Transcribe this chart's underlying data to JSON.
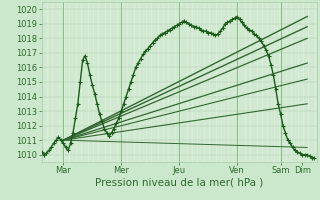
{
  "xlabel": "Pression niveau de la mer( hPa )",
  "bg_color": "#cce8cc",
  "plot_bg_color": "#d8eed8",
  "grid_color": "#aaccaa",
  "ylim": [
    1009.5,
    1020.5
  ],
  "yticks": [
    1010,
    1011,
    1012,
    1013,
    1014,
    1015,
    1016,
    1017,
    1018,
    1019,
    1020
  ],
  "xlim": [
    0,
    228
  ],
  "xtick_labels": [
    "Mar",
    "Mer",
    "Jeu",
    "Ven",
    "Sam",
    "Dim"
  ],
  "xtick_positions": [
    18,
    66,
    114,
    162,
    198,
    216
  ],
  "vline_positions": [
    18,
    66,
    114,
    162,
    198
  ],
  "vline_color": "#88bb88",
  "tick_color": "#2d6a2d",
  "tick_fontsize": 6.0,
  "label_fontsize": 7.5,
  "line_color": "#1a5c1a",
  "fc_color": "#336633",
  "actual_x": [
    0,
    2,
    4,
    6,
    8,
    10,
    12,
    14,
    16,
    18,
    20,
    22,
    24,
    26,
    28,
    30,
    32,
    34,
    36,
    38,
    40,
    42,
    44,
    46,
    48,
    50,
    52,
    54,
    56,
    58,
    60,
    62,
    64,
    66,
    68,
    70,
    72,
    74,
    76,
    78,
    80,
    82,
    84,
    86,
    88,
    90,
    92,
    94,
    96,
    98,
    100,
    102,
    104,
    106,
    108,
    110,
    112,
    114,
    116,
    118,
    120,
    122,
    124,
    126,
    128,
    130,
    132,
    134,
    136,
    138,
    140,
    142,
    144,
    146,
    148,
    150,
    152,
    154,
    156,
    158,
    160,
    162,
    164,
    166,
    168,
    170,
    172,
    174,
    176,
    178,
    180,
    182,
    184,
    186,
    188,
    190,
    192,
    194,
    196,
    198,
    200,
    202,
    204,
    206,
    208,
    210,
    212,
    214,
    216,
    218,
    220,
    222,
    224,
    226
  ],
  "actual_y": [
    1010.2,
    1010.0,
    1010.1,
    1010.3,
    1010.5,
    1010.8,
    1011.0,
    1011.2,
    1011.0,
    1010.8,
    1010.5,
    1010.3,
    1010.8,
    1011.5,
    1012.5,
    1013.5,
    1015.0,
    1016.5,
    1016.8,
    1016.3,
    1015.5,
    1014.8,
    1014.2,
    1013.5,
    1012.8,
    1012.3,
    1011.8,
    1011.5,
    1011.3,
    1011.5,
    1011.8,
    1012.2,
    1012.5,
    1013.0,
    1013.5,
    1014.0,
    1014.5,
    1015.0,
    1015.5,
    1016.0,
    1016.3,
    1016.6,
    1016.9,
    1017.1,
    1017.3,
    1017.5,
    1017.7,
    1017.9,
    1018.0,
    1018.2,
    1018.3,
    1018.4,
    1018.5,
    1018.6,
    1018.7,
    1018.8,
    1018.9,
    1019.0,
    1019.1,
    1019.2,
    1019.1,
    1019.0,
    1018.9,
    1018.8,
    1018.8,
    1018.7,
    1018.6,
    1018.5,
    1018.5,
    1018.4,
    1018.4,
    1018.3,
    1018.2,
    1018.3,
    1018.5,
    1018.7,
    1019.0,
    1019.1,
    1019.2,
    1019.3,
    1019.4,
    1019.5,
    1019.3,
    1019.1,
    1018.9,
    1018.7,
    1018.6,
    1018.5,
    1018.3,
    1018.2,
    1018.0,
    1017.8,
    1017.5,
    1017.2,
    1016.8,
    1016.2,
    1015.5,
    1014.5,
    1013.5,
    1012.8,
    1012.0,
    1011.5,
    1011.0,
    1010.8,
    1010.5,
    1010.3,
    1010.2,
    1010.1,
    1010.0,
    1010.0,
    1010.0,
    1009.9,
    1009.8,
    1009.8
  ],
  "fc_lines": [
    {
      "x0": 18,
      "y0": 1011.0,
      "x1": 220,
      "y1": 1019.5,
      "lw": 1.0
    },
    {
      "x0": 18,
      "y0": 1011.0,
      "x1": 220,
      "y1": 1018.8,
      "lw": 1.0
    },
    {
      "x0": 18,
      "y0": 1011.0,
      "x1": 220,
      "y1": 1018.0,
      "lw": 0.9
    },
    {
      "x0": 18,
      "y0": 1011.0,
      "x1": 220,
      "y1": 1016.3,
      "lw": 0.9
    },
    {
      "x0": 18,
      "y0": 1011.0,
      "x1": 220,
      "y1": 1015.2,
      "lw": 0.8
    },
    {
      "x0": 18,
      "y0": 1011.0,
      "x1": 220,
      "y1": 1013.5,
      "lw": 0.8
    },
    {
      "x0": 18,
      "y0": 1011.0,
      "x1": 220,
      "y1": 1010.5,
      "lw": 0.7
    }
  ]
}
